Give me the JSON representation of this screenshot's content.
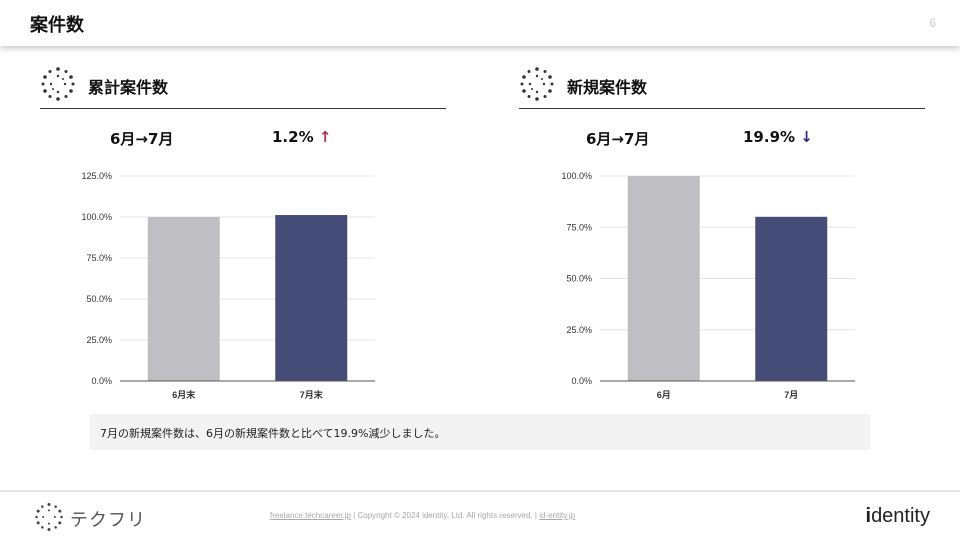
{
  "header": {
    "title": "案件数",
    "page_number": "6"
  },
  "left": {
    "title": "累計案件数",
    "period": "6月→7月",
    "change": "1.2%",
    "direction": "↑",
    "chart_data": {
      "type": "bar",
      "categories": [
        "6月末",
        "7月末"
      ],
      "values": [
        100.0,
        101.2
      ],
      "yticks": [
        "0.0%",
        "25.0%",
        "50.0%",
        "75.0%",
        "100.0%",
        "125.0%"
      ],
      "ylim": [
        0,
        125
      ],
      "colors": [
        "#bfbec3",
        "#454c78"
      ],
      "grid": true
    }
  },
  "right": {
    "title": "新規案件数",
    "period": "6月→7月",
    "change": "19.9%",
    "direction": "↓",
    "chart_data": {
      "type": "bar",
      "categories": [
        "6月",
        "7月"
      ],
      "values": [
        100.0,
        80.1
      ],
      "yticks": [
        "0.0%",
        "25.0%",
        "50.0%",
        "75.0%",
        "100.0%"
      ],
      "ylim": [
        0,
        100
      ],
      "colors": [
        "#bfbec3",
        "#454c78"
      ],
      "grid": true
    }
  },
  "note": "7月の新規案件数は、6月の新規案件数と比べて19.9%減少しました。",
  "footer": {
    "brand": "テクフリ",
    "link1": "freelance.techcareer.jp",
    "copyright": "Copyright © 2024 identity, Ltd. All rights reserved.",
    "link2": "id-entity.jp",
    "company_i": "i",
    "company_rest": "dentity"
  }
}
